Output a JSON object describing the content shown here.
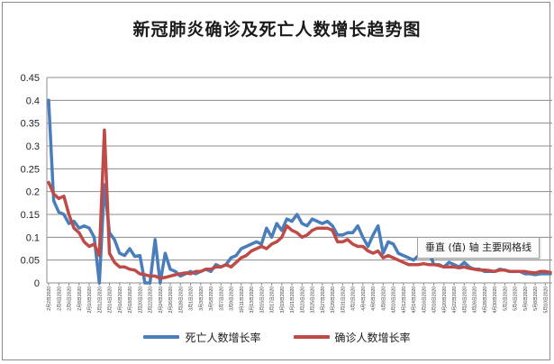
{
  "title": "新冠肺炎确诊及死亡人数增长趋势图",
  "tooltip": "垂直 (值) 轴 主要网格线",
  "chart_data": {
    "type": "line",
    "title": "新冠肺炎确诊及死亡人数增长趋势图",
    "xlabel": "",
    "ylabel": "",
    "ylim": [
      0,
      0.45
    ],
    "yticks": [
      "0",
      "0.05",
      "0.1",
      "0.15",
      "0.2",
      "0.25",
      "0.3",
      "0.35",
      "0.4",
      "0.45"
    ],
    "grid": true,
    "legend_position": "bottom",
    "x": [
      "2月2日2020",
      "2月3日2020",
      "2月4日2020",
      "2月5日2020",
      "2月6日2020",
      "2月7日2020",
      "2月8日2020",
      "2月9日2020",
      "2月10日2020",
      "2月11日2020",
      "2月12日2020",
      "2月13日2020",
      "2月14日2020",
      "2月15日2020",
      "2月16日2020",
      "2月17日2020",
      "2月18日2020",
      "2月19日2020",
      "2月20日2020",
      "2月21日2020",
      "2月22日2020",
      "2月23日2020",
      "2月24日2020",
      "2月25日2020",
      "2月26日2020",
      "2月27日2020",
      "2月28日2020",
      "2月29日2020",
      "3月1日2020",
      "3月2日2020",
      "3月3日2020",
      "3月4日2020",
      "3月5日2020",
      "3月6日2020",
      "3月7日2020",
      "3月8日2020",
      "3月9日2020",
      "3月10日2020",
      "3月11日2020",
      "3月12日2020",
      "3月13日2020",
      "3月14日2020",
      "3月15日2020",
      "3月16日2020",
      "3月17日2020",
      "3月18日2020",
      "3月19日2020",
      "3月20日2020",
      "3月21日2020",
      "3月22日2020",
      "3月23日2020",
      "3月24日2020",
      "3月25日2020",
      "3月26日2020",
      "3月27日2020",
      "3月28日2020",
      "3月29日2020",
      "3月30日2020",
      "3月31日2020",
      "4月1日2020",
      "4月2日2020",
      "4月3日2020",
      "4月4日2020",
      "4月5日2020",
      "4月6日2020",
      "4月7日2020",
      "4月8日2020",
      "4月9日2020",
      "4月10日2020",
      "4月11日2020",
      "4月12日2020",
      "4月13日2020",
      "4月14日2020",
      "4月15日2020",
      "4月16日2020",
      "4月17日2020",
      "4月18日2020",
      "4月19日2020",
      "4月20日2020",
      "4月21日2020",
      "4月22日2020",
      "4月23日2020",
      "4月24日2020",
      "4月25日2020",
      "4月26日2020",
      "4月27日2020",
      "4月28日2020",
      "4月29日2020",
      "4月30日2020",
      "5月1日2020",
      "5月2日2020",
      "5月3日2020",
      "5月4日2020",
      "5月5日2020",
      "5月6日2020",
      "5月7日2020",
      "5月8日2020",
      "5月9日2020",
      "5月10日2020",
      "5月11日2020"
    ],
    "x_tick_labels": [
      "2月2日2020",
      "2月4日2020",
      "2月6日2020",
      "2月8日2020",
      "2月10日2020",
      "2月12日2020",
      "2月14日2020",
      "2月16日2020",
      "2月18日2020",
      "2月20日2020",
      "2月22日2020",
      "2月24日2020",
      "2月26日2020",
      "2月28日2020",
      "3月1日2020",
      "3月3日2020",
      "3月5日2020",
      "3月7日2020",
      "3月9日2020",
      "3月11日2020",
      "3月13日2020",
      "3月15日2020",
      "3月17日2020",
      "3月19日2020",
      "3月21日2020",
      "3月23日2020",
      "3月25日2020",
      "3月27日2020",
      "3月29日2020",
      "3月31日2020",
      "4月2日2020",
      "4月4日2020",
      "4月6日2020",
      "4月8日2020",
      "4月10日2020",
      "4月12日2020",
      "4月14日2020",
      "4月16日2020",
      "4月18日2020",
      "4月20日2020",
      "4月22日2020",
      "4月24日2020",
      "4月26日2020",
      "4月28日2020",
      "4月30日2020",
      "5月2日2020",
      "5月4日2020",
      "5月6日2020",
      "5月8日2020",
      "5月10日2020"
    ],
    "series": [
      {
        "name": "死亡人数增长率",
        "color": "#4a7ebb",
        "values": [
          0.4,
          0.18,
          0.155,
          0.15,
          0.13,
          0.135,
          0.12,
          0.125,
          0.12,
          0.1,
          0.0,
          0.215,
          0.11,
          0.095,
          0.065,
          0.06,
          0.075,
          0.058,
          0.06,
          0.0,
          0.0,
          0.095,
          0.0,
          0.065,
          0.03,
          0.025,
          0.015,
          0.02,
          0.025,
          0.02,
          0.025,
          0.03,
          0.025,
          0.04,
          0.035,
          0.04,
          0.055,
          0.06,
          0.075,
          0.08,
          0.085,
          0.09,
          0.085,
          0.12,
          0.1,
          0.13,
          0.115,
          0.14,
          0.135,
          0.15,
          0.13,
          0.125,
          0.14,
          0.135,
          0.13,
          0.135,
          0.125,
          0.105,
          0.105,
          0.11,
          0.11,
          0.125,
          0.1,
          0.08,
          0.105,
          0.125,
          0.065,
          0.09,
          0.085,
          0.065,
          0.06,
          0.055,
          0.05,
          0.06,
          0.085,
          0.07,
          0.04,
          0.04,
          0.035,
          0.045,
          0.04,
          0.035,
          0.045,
          0.035,
          0.03,
          0.03,
          0.025,
          0.025,
          0.025,
          0.03,
          0.028,
          0.025,
          0.025,
          0.025,
          0.02,
          0.02,
          0.018,
          0.02,
          0.02,
          0.02
        ]
      },
      {
        "name": "确诊人数增长率",
        "color": "#be4b48",
        "values": [
          0.22,
          0.195,
          0.185,
          0.19,
          0.15,
          0.12,
          0.11,
          0.09,
          0.08,
          0.085,
          0.06,
          0.335,
          0.065,
          0.045,
          0.035,
          0.035,
          0.03,
          0.028,
          0.02,
          0.018,
          0.015,
          0.015,
          0.01,
          0.012,
          0.015,
          0.018,
          0.02,
          0.022,
          0.02,
          0.025,
          0.025,
          0.03,
          0.03,
          0.035,
          0.035,
          0.04,
          0.035,
          0.045,
          0.055,
          0.06,
          0.07,
          0.075,
          0.08,
          0.075,
          0.085,
          0.09,
          0.1,
          0.125,
          0.115,
          0.11,
          0.1,
          0.105,
          0.115,
          0.12,
          0.12,
          0.12,
          0.115,
          0.09,
          0.09,
          0.095,
          0.085,
          0.08,
          0.08,
          0.07,
          0.065,
          0.07,
          0.055,
          0.06,
          0.055,
          0.05,
          0.045,
          0.04,
          0.04,
          0.04,
          0.042,
          0.04,
          0.04,
          0.038,
          0.035,
          0.035,
          0.035,
          0.033,
          0.035,
          0.032,
          0.03,
          0.028,
          0.028,
          0.027,
          0.025,
          0.028,
          0.028,
          0.025,
          0.025,
          0.025,
          0.025,
          0.023,
          0.022,
          0.025,
          0.025,
          0.023
        ]
      }
    ]
  }
}
